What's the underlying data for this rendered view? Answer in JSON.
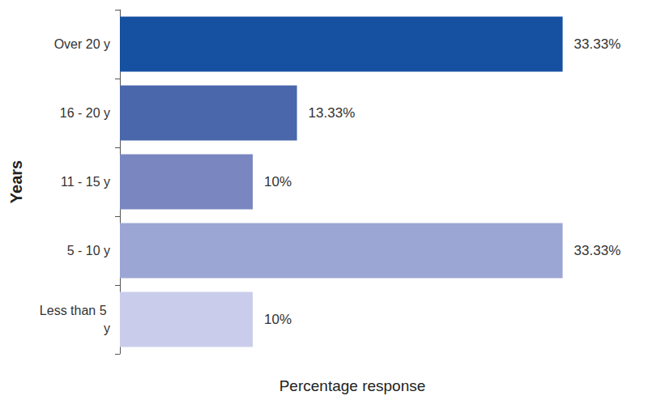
{
  "chart_data": {
    "type": "bar",
    "orientation": "horizontal",
    "x_label": "Percentage response",
    "y_label": "Years",
    "categories": [
      "Over 20 y",
      "16 - 20 y",
      "11 - 15 y",
      "5 - 10 y",
      "Less than 5 y"
    ],
    "values": [
      33.33,
      13.33,
      10,
      33.33,
      10
    ],
    "value_labels": [
      "33.33%",
      "13.33%",
      "10%",
      "33.33%",
      "10%"
    ],
    "colors": [
      "#1550a1",
      "#4a67ab",
      "#7986c0",
      "#9ca6d4",
      "#c9cdeb"
    ],
    "xlim": [
      0,
      35
    ],
    "grid": false,
    "data_labels": true,
    "tick_labels": "y"
  }
}
